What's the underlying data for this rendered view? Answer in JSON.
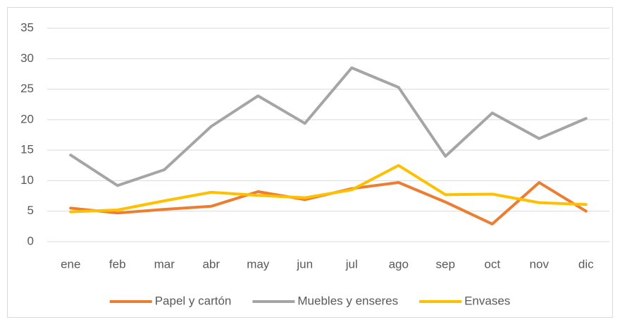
{
  "chart_data": {
    "type": "line",
    "categories": [
      "ene",
      "feb",
      "mar",
      "abr",
      "may",
      "jun",
      "jul",
      "ago",
      "sep",
      "oct",
      "nov",
      "dic"
    ],
    "series": [
      {
        "name": "Papel y cartón",
        "color": "#ed7d31",
        "values": [
          5.5,
          4.7,
          5.3,
          5.8,
          8.2,
          6.9,
          8.7,
          9.7,
          6.5,
          2.9,
          9.7,
          5.0
        ]
      },
      {
        "name": "Muebles y enseres",
        "color": "#a5a5a5",
        "values": [
          14.2,
          9.2,
          11.8,
          18.9,
          23.9,
          19.4,
          28.5,
          25.3,
          14.0,
          21.1,
          16.9,
          20.2
        ]
      },
      {
        "name": "Envases",
        "color": "#ffc000",
        "values": [
          4.9,
          5.2,
          6.7,
          8.1,
          7.6,
          7.2,
          8.5,
          12.5,
          7.7,
          7.8,
          6.4,
          6.1
        ]
      }
    ],
    "ylim": [
      0,
      35
    ],
    "yticks": [
      0,
      5,
      10,
      15,
      20,
      25,
      30,
      35
    ],
    "grid": true,
    "legend": "bottom"
  }
}
